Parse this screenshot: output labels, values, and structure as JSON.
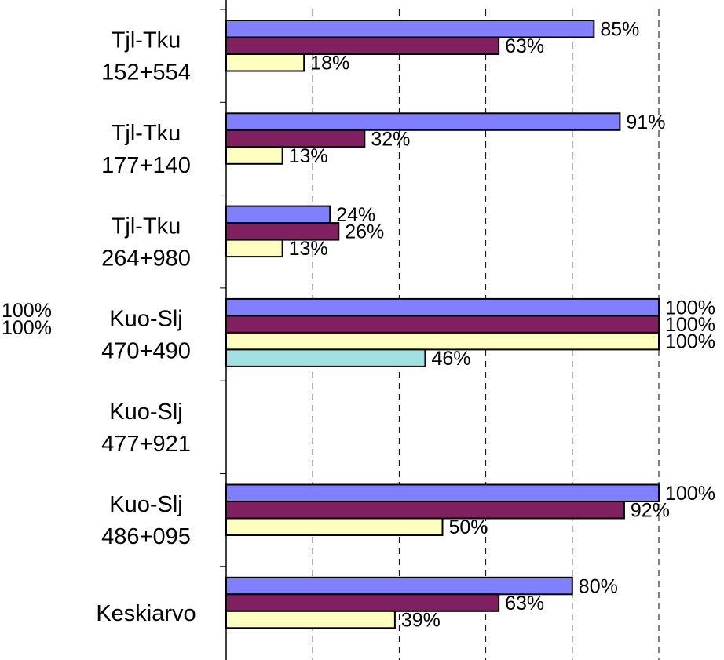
{
  "chart_data": {
    "type": "bar",
    "orientation": "horizontal",
    "grid": "vertical-dashed",
    "xlim": [
      0,
      100
    ],
    "categories": [
      [
        "Tjl-Tku",
        "152+554"
      ],
      [
        "Tjl-Tku",
        "177+140"
      ],
      [
        "Tjl-Tku",
        "264+980"
      ],
      [
        "Kuo-Slj",
        "470+490"
      ],
      [
        "Kuo-Slj",
        "477+921"
      ],
      [
        "Kuo-Slj",
        "486+095"
      ],
      [
        "Keskiarvo"
      ]
    ],
    "series": [
      {
        "color": "#8080ff",
        "values": [
          85,
          91,
          24,
          100,
          null,
          100,
          80
        ],
        "labels": [
          "85%",
          "91%",
          "24%",
          "100%",
          null,
          "100%",
          "80%"
        ]
      },
      {
        "color": "#802060",
        "values": [
          63,
          32,
          26,
          100,
          null,
          92,
          63
        ],
        "labels": [
          "63%",
          "32%",
          "26%",
          "100%",
          null,
          "92%",
          "63%"
        ]
      },
      {
        "color": "#ffffc0",
        "values": [
          18,
          13,
          13,
          100,
          null,
          50,
          39
        ],
        "labels": [
          "18%",
          "13%",
          "13%",
          "100%",
          null,
          "50%",
          "39%"
        ]
      },
      {
        "color": "#a0e0e0",
        "values": [
          null,
          null,
          null,
          46,
          null,
          null,
          null
        ],
        "labels": [
          null,
          null,
          null,
          "46%",
          null,
          null,
          null
        ]
      }
    ],
    "stray_labels": [
      "100%",
      "100%"
    ]
  }
}
